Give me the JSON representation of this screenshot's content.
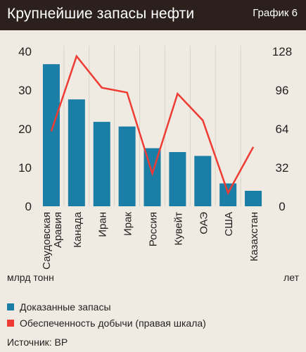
{
  "header": {
    "title": "Крупнейшие запасы нефти",
    "graph_label": "График 6"
  },
  "units": {
    "left": "млрд тонн",
    "right": "лет"
  },
  "legend": [
    {
      "label": "Доказанные запасы",
      "color": "#1a7ea6"
    },
    {
      "label": "Обеспеченность добычи (правая шкала)",
      "color": "#ee3b33"
    }
  ],
  "source": "Источник: BP",
  "chart_data": {
    "type": "bar",
    "categories": [
      "Саудовская Аравия",
      "Канада",
      "Иран",
      "Ирак",
      "Россия",
      "Кувейт",
      "ОАЭ",
      "США",
      "Казахстан"
    ],
    "category_lines": [
      [
        "Саудовская",
        "Аравия"
      ],
      [
        "Канада"
      ],
      [
        "Иран"
      ],
      [
        "Ирак"
      ],
      [
        "Россия"
      ],
      [
        "Кувейт"
      ],
      [
        "ОАЭ"
      ],
      [
        "США"
      ],
      [
        "Казахстан"
      ]
    ],
    "series": [
      {
        "name": "Доказанные запасы",
        "type": "bar",
        "axis": "left",
        "color": "#1a7ea6",
        "values": [
          36.7,
          27.6,
          21.8,
          20.6,
          15.0,
          14.0,
          13.0,
          5.9,
          4.0
        ]
      },
      {
        "name": "Обеспеченность добычи (правая шкала)",
        "type": "line",
        "axis": "right",
        "color": "#ee3b33",
        "values": [
          62,
          124,
          98,
          94,
          27,
          93,
          71,
          11,
          49
        ]
      }
    ],
    "y_left": {
      "min": 0,
      "max": 40,
      "ticks": [
        0,
        10,
        20,
        30,
        40
      ],
      "label": "млрд тонн"
    },
    "y_right": {
      "min": 0,
      "max": 128,
      "ticks": [
        0,
        32,
        64,
        96,
        128
      ],
      "label": "лет"
    },
    "grid": false,
    "legend_position": "bottom"
  }
}
